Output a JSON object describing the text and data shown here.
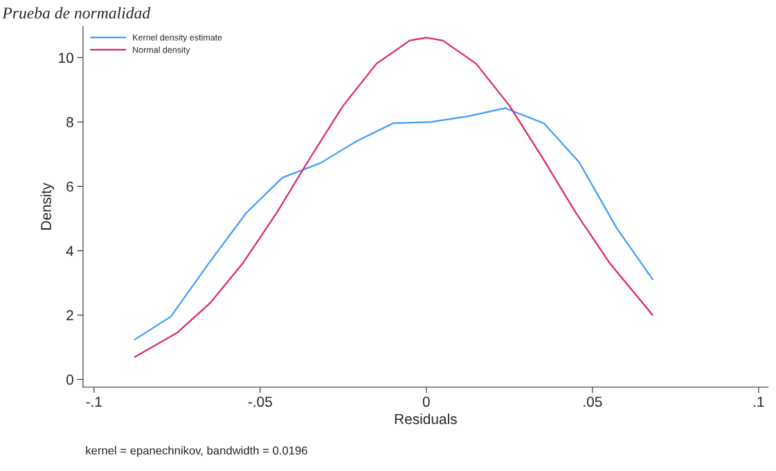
{
  "chart_data": {
    "type": "line",
    "title": "Prueba de normalidad",
    "xlabel": "Residuals",
    "ylabel": "Density",
    "annotations": [
      "kernel = epanechnikov, bandwidth = 0.0196"
    ],
    "series": [
      {
        "name": "Kernel density estimate",
        "color": "#3d9bff",
        "x": [
          -0.0877,
          -0.0769,
          -0.0658,
          -0.0542,
          -0.0433,
          -0.0319,
          -0.021,
          -0.01,
          0.0013,
          0.0123,
          0.0237,
          0.0354,
          0.046,
          0.0573,
          0.0681
        ],
        "values": [
          1.24,
          1.95,
          3.56,
          5.17,
          6.27,
          6.72,
          7.4,
          7.96,
          8.0,
          8.17,
          8.43,
          7.96,
          6.75,
          4.7,
          3.11
        ]
      },
      {
        "name": "Normal density",
        "color": "#e0245e",
        "x": [
          -0.0877,
          -0.075,
          -0.065,
          -0.055,
          -0.045,
          -0.035,
          -0.025,
          -0.015,
          -0.005,
          0,
          0.005,
          0.015,
          0.025,
          0.035,
          0.045,
          0.055,
          0.0681
        ],
        "values": [
          0.7,
          1.45,
          2.38,
          3.64,
          5.18,
          6.88,
          8.51,
          9.81,
          10.53,
          10.62,
          10.53,
          9.81,
          8.51,
          6.88,
          5.18,
          3.64,
          2.0
        ]
      }
    ],
    "xlim": [
      -0.1033,
      0.1029
    ],
    "xticks": [
      {
        "value": -0.1,
        "label": "-.1"
      },
      {
        "value": -0.05,
        "label": "-.05"
      },
      0,
      {
        "value": 0.05,
        "label": ".05"
      },
      {
        "value": 0.1,
        "label": ".1"
      }
    ],
    "ylim": [
      -0.24,
      10.97
    ],
    "yticks": [
      0,
      2,
      4,
      6,
      8,
      10
    ],
    "grid": false,
    "legend": "top left",
    "marker": "none",
    "line_style": "solid"
  }
}
